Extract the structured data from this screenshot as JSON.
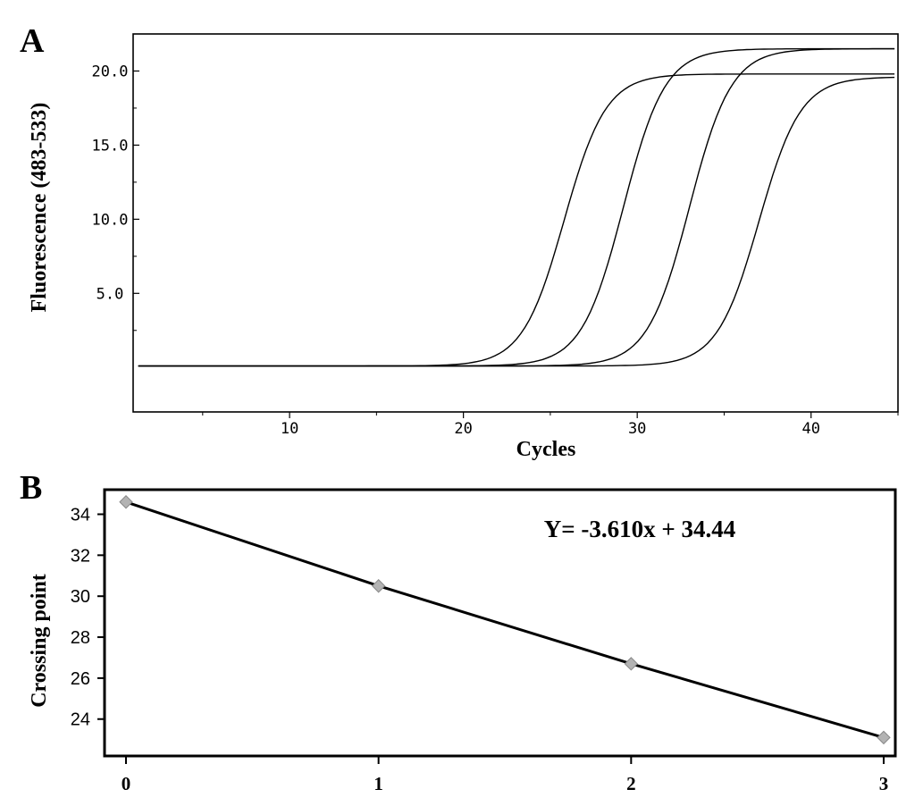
{
  "chart_data": [
    {
      "panel": "A",
      "type": "line",
      "xlabel": "Cycles",
      "ylabel": "Fluorescence (483-533)",
      "xlim": [
        1,
        45
      ],
      "ylim": [
        -3,
        22.5
      ],
      "x_ticks": [
        10,
        20,
        30,
        40
      ],
      "x_tick_labels": [
        "10",
        "20",
        "30",
        "40"
      ],
      "y_ticks": [
        5,
        10,
        15,
        20
      ],
      "y_tick_labels": [
        "5.0",
        "10.0",
        "15.0",
        "20.0"
      ],
      "grid": false,
      "series": [
        {
          "baseline": 0.1,
          "plateau": 19.8,
          "midpoint": 25.8,
          "slope": 1.2
        },
        {
          "baseline": 0.1,
          "plateau": 21.5,
          "midpoint": 29.2,
          "slope": 1.2
        },
        {
          "baseline": 0.1,
          "plateau": 21.5,
          "midpoint": 33.0,
          "slope": 1.2
        },
        {
          "baseline": 0.1,
          "plateau": 19.6,
          "midpoint": 37.0,
          "slope": 1.2
        }
      ]
    },
    {
      "panel": "B",
      "type": "scatter",
      "xlabel": "",
      "ylabel": "Crossing point",
      "xlim": [
        0,
        3
      ],
      "ylim": [
        22.2,
        35.2
      ],
      "x_ticks": [
        0,
        1,
        2,
        3
      ],
      "x_tick_labels": [
        "0",
        "1",
        "2",
        "3"
      ],
      "y_ticks": [
        24,
        26,
        28,
        30,
        32,
        34
      ],
      "y_tick_labels": [
        "24",
        "26",
        "28",
        "30",
        "32",
        "34"
      ],
      "grid": false,
      "points": [
        {
          "x": 0,
          "y": 34.6
        },
        {
          "x": 1,
          "y": 30.5
        },
        {
          "x": 2,
          "y": 26.7
        },
        {
          "x": 3,
          "y": 23.1
        }
      ],
      "fit": {
        "slope": -3.61,
        "intercept": 34.44
      },
      "annotation": "Y= -3.610x + 34.44"
    }
  ]
}
